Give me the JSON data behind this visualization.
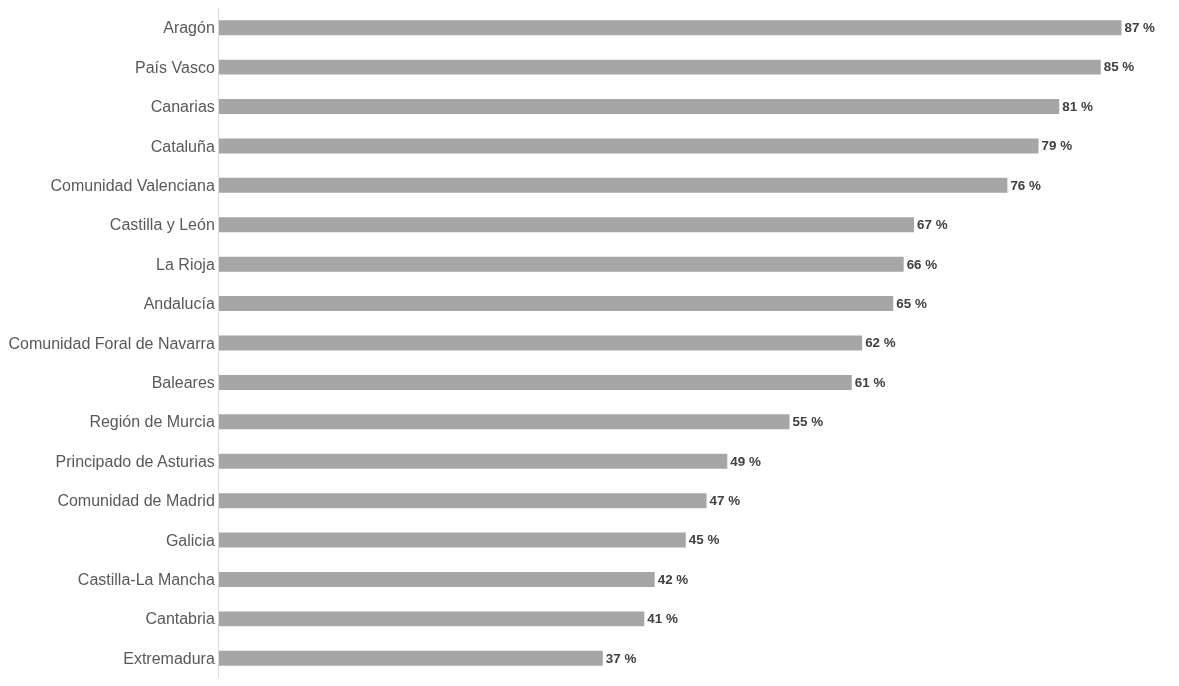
{
  "chart_data": {
    "type": "bar",
    "orientation": "horizontal",
    "categories": [
      "Aragón",
      "País Vasco",
      "Canarias",
      "Cataluña",
      "Comunidad Valenciana",
      "Castilla y León",
      "La Rioja",
      "Andalucía",
      "Comunidad Foral de Navarra",
      "Baleares",
      "Región de Murcia",
      "Principado de Asturias",
      "Comunidad de Madrid",
      "Galicia",
      "Castilla-La Mancha",
      "Cantabria",
      "Extremadura"
    ],
    "values": [
      87,
      85,
      81,
      79,
      76,
      67,
      66,
      65,
      62,
      61,
      55,
      49,
      47,
      45,
      42,
      41,
      37
    ],
    "value_labels": [
      "87 %",
      "85 %",
      "81 %",
      "79 %",
      "76 %",
      "67 %",
      "66 %",
      "65 %",
      "62 %",
      "61 %",
      "55 %",
      "49 %",
      "47 %",
      "45 %",
      "42 %",
      "41 %",
      "37 %"
    ],
    "color": "#a6a6a6",
    "tick_labels": "y",
    "grid": false
  }
}
